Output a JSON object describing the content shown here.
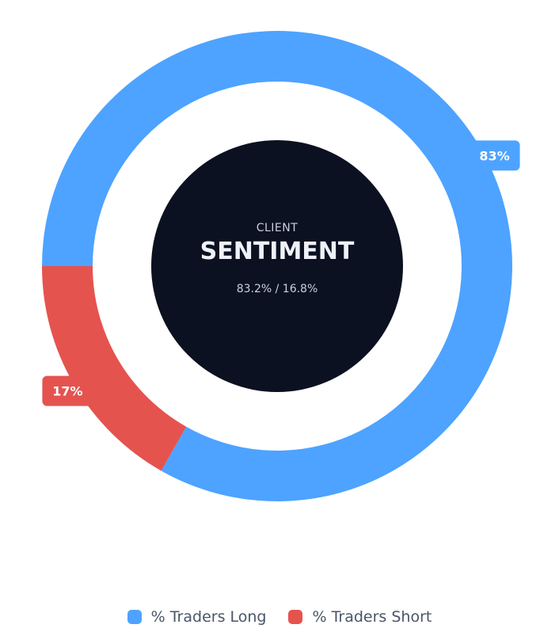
{
  "chart_data": {
    "type": "pie",
    "variant": "donut",
    "center": {
      "subtitle": "CLIENT",
      "title": "SENTIMENT",
      "ratio_text": "83.2% / 16.8%"
    },
    "series": [
      {
        "name": "% Traders Long",
        "value": 83.2,
        "label": "83%",
        "color": "#4da3ff"
      },
      {
        "name": "% Traders Short",
        "value": 16.8,
        "label": "17%",
        "color": "#e5534f"
      }
    ],
    "start_angle_deg": 270,
    "legend_position": "bottom-center"
  },
  "colors": {
    "center_fill": "#0b1121",
    "center_text": "#eef1f7"
  }
}
